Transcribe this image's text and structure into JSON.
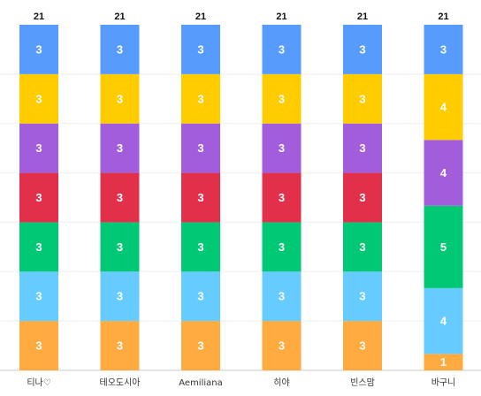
{
  "chart_data": {
    "type": "bar",
    "stacked": true,
    "categories": [
      "티나♡",
      "테오도시아",
      "Aemiliana",
      "히야",
      "빈스맘",
      "바구니"
    ],
    "series": [
      {
        "values": [
          3,
          3,
          3,
          3,
          3,
          1
        ],
        "color": "#FFAB40"
      },
      {
        "values": [
          3,
          3,
          3,
          3,
          3,
          4
        ],
        "color": "#66CCFF"
      },
      {
        "values": [
          3,
          3,
          3,
          3,
          3,
          5
        ],
        "color": "#00C875"
      },
      {
        "values": [
          3,
          3,
          3,
          3,
          3,
          0
        ],
        "color": "#E2304B"
      },
      {
        "values": [
          3,
          3,
          3,
          3,
          3,
          4
        ],
        "color": "#A25DDC"
      },
      {
        "values": [
          3,
          3,
          3,
          3,
          3,
          4
        ],
        "color": "#FFCC00"
      },
      {
        "values": [
          3,
          3,
          3,
          3,
          3,
          3
        ],
        "color": "#579BFC"
      }
    ],
    "totals": [
      21,
      21,
      21,
      21,
      21,
      21
    ],
    "ylim": [
      0,
      21
    ],
    "grid": true,
    "legend": "none"
  }
}
